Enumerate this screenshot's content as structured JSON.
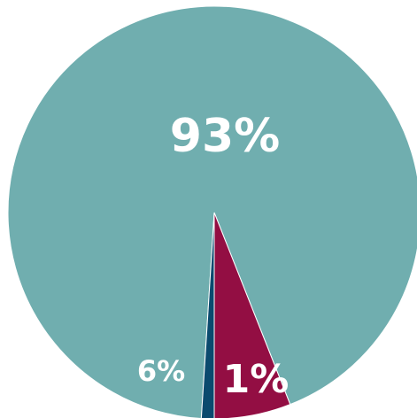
{
  "chart_data": {
    "type": "pie",
    "slices": [
      {
        "label_text": "93%",
        "value": 93,
        "color": "#70aeaf"
      },
      {
        "label_text": "6%",
        "value": 6,
        "color": "#930e43"
      },
      {
        "label_text": "1%",
        "value": 1,
        "color": "#0a4a6e"
      }
    ],
    "title": "",
    "legend": "none"
  }
}
